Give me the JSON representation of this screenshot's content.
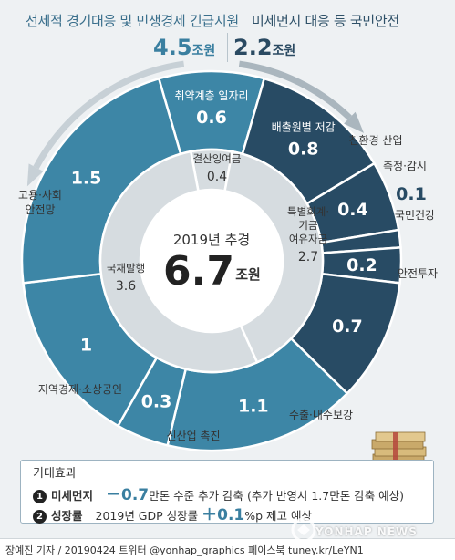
{
  "header": {
    "left_title": "선제적 경기대응 및 민생경제 긴급지원",
    "left_amount": "4.5",
    "right_title": "미세먼지 대응 등 국민안전",
    "right_amount": "2.2",
    "unit": "조원"
  },
  "chart_data": {
    "type": "pie",
    "center_title": "2019년 추경",
    "center_value": "6.7",
    "center_unit": "조원",
    "outer_ring": [
      {
        "label": "취약계층 일자리",
        "value": 0.6,
        "group": "left"
      },
      {
        "label": "배출원별 저감",
        "value": 0.8,
        "group": "right"
      },
      {
        "label": "친환경 산업",
        "value": 0.4,
        "group": "right"
      },
      {
        "label": "측정·감시",
        "value": 0.1,
        "group": "right"
      },
      {
        "label": "국민건강",
        "value": 0.2,
        "group": "right"
      },
      {
        "label": "안전투자",
        "value": 0.7,
        "group": "right"
      },
      {
        "label": "수출·내수보강",
        "value": 1.1,
        "group": "left"
      },
      {
        "label": "신산업 촉진",
        "value": 0.3,
        "group": "left"
      },
      {
        "label": "지역경제·소상공인",
        "value": 1.0,
        "group": "left"
      },
      {
        "label": "고용·사회 안전망",
        "value": 1.5,
        "group": "left"
      }
    ],
    "inner_ring": [
      {
        "label": "결산잉여금",
        "value": 0.4
      },
      {
        "label": "특별회계·기금 여유자금",
        "value": 2.7
      },
      {
        "label": "국채발행",
        "value": 3.6
      }
    ],
    "colors": {
      "left_group": "#3d86a6",
      "right_group": "#284b64",
      "inner": "#d6dce0"
    }
  },
  "effects": {
    "title": "기대효과",
    "items": [
      {
        "num": "1",
        "label": "미세먼지",
        "prefix": "",
        "big": "－0.7",
        "text": "만톤 수준 추가 감축 (추가 반영시 1.7만톤 감축 예상)"
      },
      {
        "num": "2",
        "label": "성장률",
        "prefix": "2019년 GDP 성장률 ",
        "big": "＋0.1",
        "text": "%p 제고 예상"
      }
    ]
  },
  "footer": {
    "credit": "장예진 기자 / 20190424 트위터 @yonhap_graphics  페이스북 tuney.kr/LeYN1",
    "watermark": "YONHAP NEWS"
  }
}
